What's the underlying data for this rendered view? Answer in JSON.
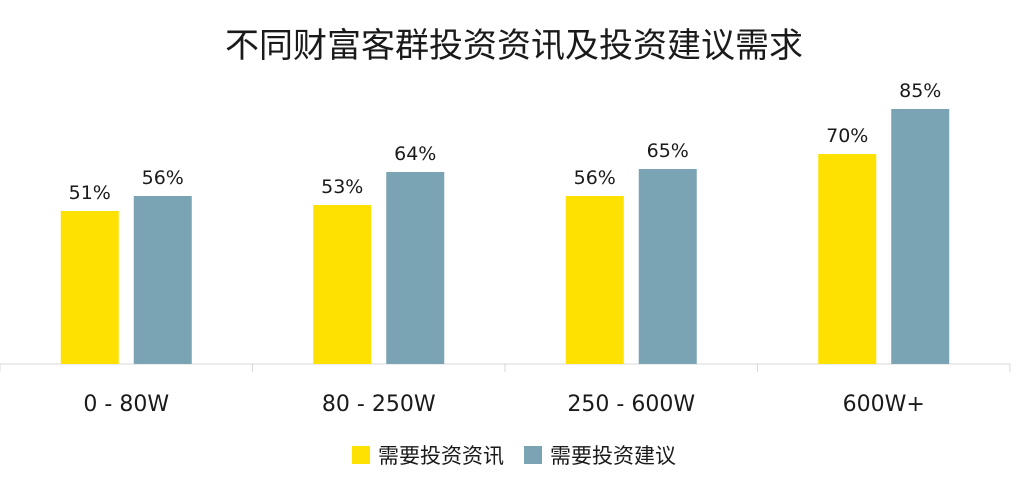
{
  "chart_data": {
    "type": "bar",
    "title": "不同财富客群投资资讯及投资建议需求",
    "categories": [
      "0 - 80W",
      "80 - 250W",
      "250 - 600W",
      "600W+"
    ],
    "series": [
      {
        "name": "需要投资资讯",
        "values": [
          51,
          53,
          56,
          70
        ],
        "labels": [
          "51%",
          "53%",
          "56%",
          "70%"
        ],
        "color": "#FFE100"
      },
      {
        "name": "需要投资建议",
        "values": [
          56,
          64,
          65,
          85
        ],
        "labels": [
          "56%",
          "64%",
          "65%",
          "85%"
        ],
        "color": "#7AA3B3"
      }
    ],
    "ylim": [
      0,
      100
    ],
    "grid": false,
    "legend": "bottom",
    "xlabel": "",
    "ylabel": ""
  }
}
